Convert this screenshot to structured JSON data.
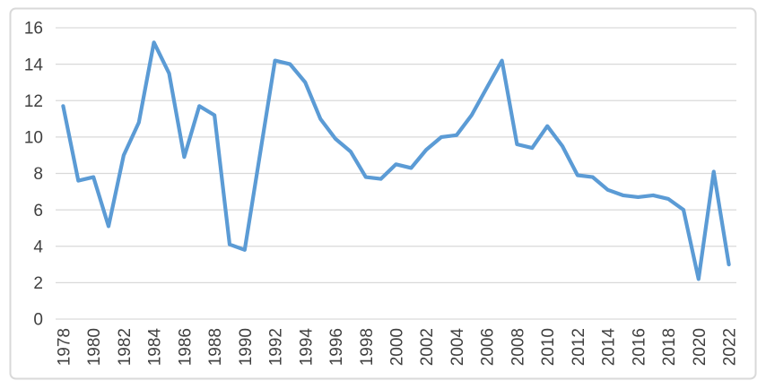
{
  "chart_data": {
    "type": "line",
    "title": "",
    "xlabel": "",
    "ylabel": "",
    "x": [
      1978,
      1979,
      1980,
      1981,
      1982,
      1983,
      1984,
      1985,
      1986,
      1987,
      1988,
      1989,
      1990,
      1991,
      1992,
      1993,
      1994,
      1995,
      1996,
      1997,
      1998,
      1999,
      2000,
      2001,
      2002,
      2003,
      2004,
      2005,
      2006,
      2007,
      2008,
      2009,
      2010,
      2011,
      2012,
      2013,
      2014,
      2015,
      2016,
      2017,
      2018,
      2019,
      2020,
      2021,
      2022
    ],
    "values": [
      11.7,
      7.6,
      7.8,
      5.1,
      9.0,
      10.8,
      15.2,
      13.5,
      8.9,
      11.7,
      11.2,
      4.1,
      3.8,
      9.0,
      14.2,
      14.0,
      13.0,
      11.0,
      9.9,
      9.2,
      7.8,
      7.7,
      8.5,
      8.3,
      9.3,
      10.0,
      10.1,
      11.2,
      12.7,
      14.2,
      9.6,
      9.4,
      10.6,
      9.5,
      7.9,
      7.8,
      7.1,
      6.8,
      6.7,
      6.8,
      6.6,
      6.0,
      2.2,
      8.1,
      3.0
    ],
    "ylim": [
      0,
      16
    ],
    "yticks": [
      0,
      2,
      4,
      6,
      8,
      10,
      12,
      14,
      16
    ],
    "ytick_labels": [
      "0",
      "2",
      "4",
      "6",
      "8",
      "10",
      "12",
      "14",
      "16"
    ],
    "xtick_labels": [
      "1978",
      "1980",
      "1982",
      "1984",
      "1986",
      "1988",
      "1990",
      "1992",
      "1994",
      "1996",
      "1998",
      "2000",
      "2002",
      "2004",
      "2006",
      "2008",
      "2010",
      "2012",
      "2014",
      "2016",
      "2018",
      "2020",
      "2022"
    ],
    "grid": "horizontal",
    "legend": "none",
    "x_label_rotation_deg": -90,
    "colors": {
      "line": "#5B9BD5",
      "gridline": "#D9D9D9",
      "tick_label": "#404040",
      "frame_border": "#D9D9D9",
      "background": "#FFFFFF"
    }
  }
}
